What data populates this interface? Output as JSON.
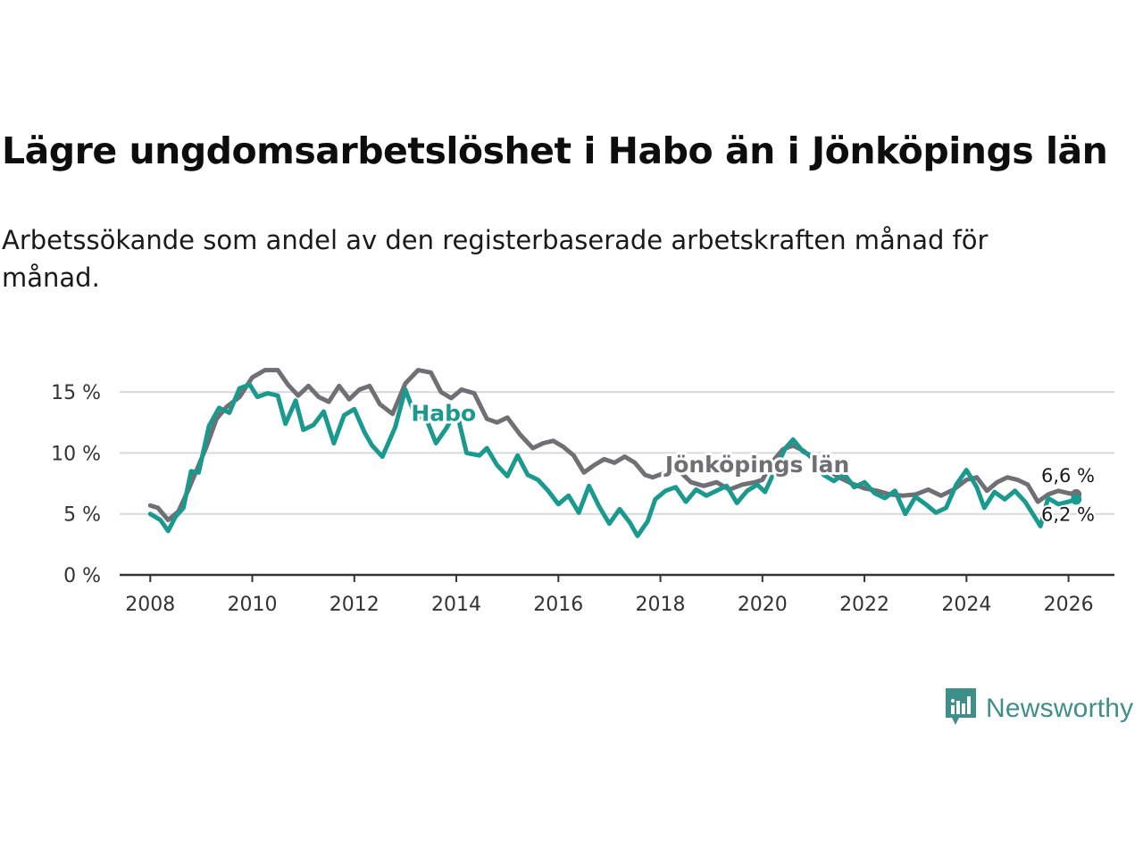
{
  "header": {
    "title": "Lägre ungdomsarbetslöshet i Habo än i Jönköpings län",
    "subtitle": "Arbetssökande som andel av den registerbaserade arbetskraften månad för månad."
  },
  "brand": {
    "name": "Newsworthy",
    "icon": "newsworthy-logo-icon",
    "color": "#3e8f8a"
  },
  "chart_data": {
    "type": "line",
    "title": "Lägre ungdomsarbetslöshet i Habo än i Jönköpings län",
    "xlabel": "",
    "ylabel": "",
    "xlim": [
      2007.4,
      2026.9
    ],
    "ylim": [
      0,
      17.5
    ],
    "grid": true,
    "x_ticks": [
      2008,
      2010,
      2012,
      2014,
      2016,
      2018,
      2020,
      2022,
      2024,
      2026
    ],
    "x_tick_labels": [
      "2008",
      "2010",
      "2012",
      "2014",
      "2016",
      "2018",
      "2020",
      "2022",
      "2024",
      "2026"
    ],
    "y_ticks": [
      0,
      5,
      10,
      15
    ],
    "y_tick_labels": [
      "0 %",
      "5 %",
      "10 %",
      "15 %"
    ],
    "series": [
      {
        "name": "Jönköpings län",
        "color": "#706f74",
        "end_label": "6,6 %",
        "points": [
          [
            2008.0,
            5.7
          ],
          [
            2008.15,
            5.5
          ],
          [
            2008.35,
            4.5
          ],
          [
            2008.55,
            5.2
          ],
          [
            2008.75,
            7.0
          ],
          [
            2008.9,
            8.5
          ],
          [
            2009.1,
            10.5
          ],
          [
            2009.3,
            12.8
          ],
          [
            2009.5,
            13.8
          ],
          [
            2009.75,
            14.6
          ],
          [
            2010.0,
            16.2
          ],
          [
            2010.25,
            16.8
          ],
          [
            2010.5,
            16.8
          ],
          [
            2010.7,
            15.6
          ],
          [
            2010.9,
            14.7
          ],
          [
            2011.1,
            15.5
          ],
          [
            2011.3,
            14.6
          ],
          [
            2011.5,
            14.2
          ],
          [
            2011.7,
            15.5
          ],
          [
            2011.9,
            14.4
          ],
          [
            2012.1,
            15.2
          ],
          [
            2012.3,
            15.5
          ],
          [
            2012.5,
            14.0
          ],
          [
            2012.75,
            13.2
          ],
          [
            2013.0,
            15.7
          ],
          [
            2013.25,
            16.8
          ],
          [
            2013.5,
            16.6
          ],
          [
            2013.7,
            15.0
          ],
          [
            2013.9,
            14.5
          ],
          [
            2014.1,
            15.2
          ],
          [
            2014.35,
            14.9
          ],
          [
            2014.6,
            12.8
          ],
          [
            2014.8,
            12.5
          ],
          [
            2015.0,
            12.9
          ],
          [
            2015.25,
            11.5
          ],
          [
            2015.5,
            10.4
          ],
          [
            2015.7,
            10.8
          ],
          [
            2015.9,
            11.0
          ],
          [
            2016.1,
            10.5
          ],
          [
            2016.3,
            9.8
          ],
          [
            2016.5,
            8.4
          ],
          [
            2016.7,
            9.0
          ],
          [
            2016.9,
            9.5
          ],
          [
            2017.1,
            9.2
          ],
          [
            2017.3,
            9.7
          ],
          [
            2017.5,
            9.2
          ],
          [
            2017.7,
            8.2
          ],
          [
            2017.85,
            8.0
          ],
          [
            2018.1,
            8.4
          ],
          [
            2018.35,
            8.6
          ],
          [
            2018.6,
            7.6
          ],
          [
            2018.85,
            7.3
          ],
          [
            2019.1,
            7.6
          ],
          [
            2019.35,
            7.0
          ],
          [
            2019.6,
            7.4
          ],
          [
            2019.85,
            7.6
          ],
          [
            2020.0,
            7.8
          ],
          [
            2020.2,
            9.3
          ],
          [
            2020.4,
            10.3
          ],
          [
            2020.6,
            10.6
          ],
          [
            2020.8,
            10.2
          ],
          [
            2021.0,
            9.5
          ],
          [
            2021.25,
            8.7
          ],
          [
            2021.5,
            8.0
          ],
          [
            2021.75,
            7.5
          ],
          [
            2022.0,
            7.1
          ],
          [
            2022.25,
            6.9
          ],
          [
            2022.5,
            6.6
          ],
          [
            2022.75,
            6.5
          ],
          [
            2023.0,
            6.6
          ],
          [
            2023.25,
            7.0
          ],
          [
            2023.5,
            6.5
          ],
          [
            2023.75,
            7.0
          ],
          [
            2024.0,
            7.8
          ],
          [
            2024.2,
            8.0
          ],
          [
            2024.4,
            6.9
          ],
          [
            2024.6,
            7.6
          ],
          [
            2024.8,
            8.0
          ],
          [
            2025.0,
            7.8
          ],
          [
            2025.2,
            7.4
          ],
          [
            2025.4,
            6.0
          ],
          [
            2025.6,
            6.6
          ],
          [
            2025.8,
            6.9
          ],
          [
            2026.0,
            6.7
          ],
          [
            2026.15,
            6.6
          ]
        ]
      },
      {
        "name": "Habo",
        "color": "#1a9a8e",
        "end_label": "6,2 %",
        "points": [
          [
            2008.0,
            5.0
          ],
          [
            2008.2,
            4.5
          ],
          [
            2008.35,
            3.6
          ],
          [
            2008.5,
            4.8
          ],
          [
            2008.65,
            5.5
          ],
          [
            2008.8,
            8.5
          ],
          [
            2008.95,
            8.4
          ],
          [
            2009.15,
            12.2
          ],
          [
            2009.35,
            13.7
          ],
          [
            2009.55,
            13.3
          ],
          [
            2009.75,
            15.3
          ],
          [
            2009.95,
            15.6
          ],
          [
            2010.1,
            14.6
          ],
          [
            2010.3,
            14.9
          ],
          [
            2010.5,
            14.7
          ],
          [
            2010.65,
            12.4
          ],
          [
            2010.85,
            14.3
          ],
          [
            2011.0,
            11.9
          ],
          [
            2011.2,
            12.3
          ],
          [
            2011.4,
            13.4
          ],
          [
            2011.6,
            10.8
          ],
          [
            2011.8,
            13.1
          ],
          [
            2012.0,
            13.6
          ],
          [
            2012.2,
            11.7
          ],
          [
            2012.35,
            10.6
          ],
          [
            2012.55,
            9.7
          ],
          [
            2012.8,
            12.1
          ],
          [
            2013.0,
            15.2
          ],
          [
            2013.2,
            13.0
          ],
          [
            2013.4,
            12.9
          ],
          [
            2013.6,
            10.8
          ],
          [
            2013.8,
            12.0
          ],
          [
            2014.0,
            13.5
          ],
          [
            2014.2,
            10.0
          ],
          [
            2014.45,
            9.8
          ],
          [
            2014.6,
            10.4
          ],
          [
            2014.8,
            9.0
          ],
          [
            2015.0,
            8.1
          ],
          [
            2015.2,
            9.8
          ],
          [
            2015.4,
            8.2
          ],
          [
            2015.6,
            7.8
          ],
          [
            2015.8,
            6.9
          ],
          [
            2016.0,
            5.8
          ],
          [
            2016.2,
            6.5
          ],
          [
            2016.4,
            5.1
          ],
          [
            2016.6,
            7.3
          ],
          [
            2016.8,
            5.6
          ],
          [
            2017.0,
            4.2
          ],
          [
            2017.2,
            5.4
          ],
          [
            2017.4,
            4.3
          ],
          [
            2017.55,
            3.2
          ],
          [
            2017.75,
            4.4
          ],
          [
            2017.9,
            6.2
          ],
          [
            2018.1,
            6.9
          ],
          [
            2018.3,
            7.2
          ],
          [
            2018.5,
            6.0
          ],
          [
            2018.7,
            7.0
          ],
          [
            2018.9,
            6.5
          ],
          [
            2019.1,
            6.9
          ],
          [
            2019.3,
            7.3
          ],
          [
            2019.5,
            5.9
          ],
          [
            2019.7,
            6.9
          ],
          [
            2019.9,
            7.4
          ],
          [
            2020.05,
            6.8
          ],
          [
            2020.25,
            8.6
          ],
          [
            2020.45,
            10.4
          ],
          [
            2020.6,
            11.1
          ],
          [
            2020.8,
            10.1
          ],
          [
            2021.0,
            9.7
          ],
          [
            2021.2,
            8.2
          ],
          [
            2021.4,
            7.7
          ],
          [
            2021.6,
            8.3
          ],
          [
            2021.8,
            7.2
          ],
          [
            2022.0,
            7.6
          ],
          [
            2022.2,
            6.7
          ],
          [
            2022.4,
            6.3
          ],
          [
            2022.6,
            6.9
          ],
          [
            2022.8,
            5.0
          ],
          [
            2023.0,
            6.4
          ],
          [
            2023.2,
            5.8
          ],
          [
            2023.4,
            5.1
          ],
          [
            2023.6,
            5.5
          ],
          [
            2023.8,
            7.4
          ],
          [
            2024.0,
            8.6
          ],
          [
            2024.2,
            7.2
          ],
          [
            2024.35,
            5.5
          ],
          [
            2024.55,
            6.8
          ],
          [
            2024.75,
            6.2
          ],
          [
            2024.95,
            6.9
          ],
          [
            2025.15,
            6.0
          ],
          [
            2025.3,
            5.0
          ],
          [
            2025.45,
            4.0
          ],
          [
            2025.6,
            6.3
          ],
          [
            2025.8,
            5.8
          ],
          [
            2026.0,
            6.0
          ],
          [
            2026.15,
            6.2
          ]
        ]
      }
    ],
    "annotations": [
      {
        "text": "Habo",
        "series": "Habo",
        "x": 2013.75,
        "y": 13.2
      },
      {
        "text": "Jönköpings län",
        "series": "Jönköpings län",
        "x": 2019.9,
        "y": 9.0
      }
    ]
  }
}
